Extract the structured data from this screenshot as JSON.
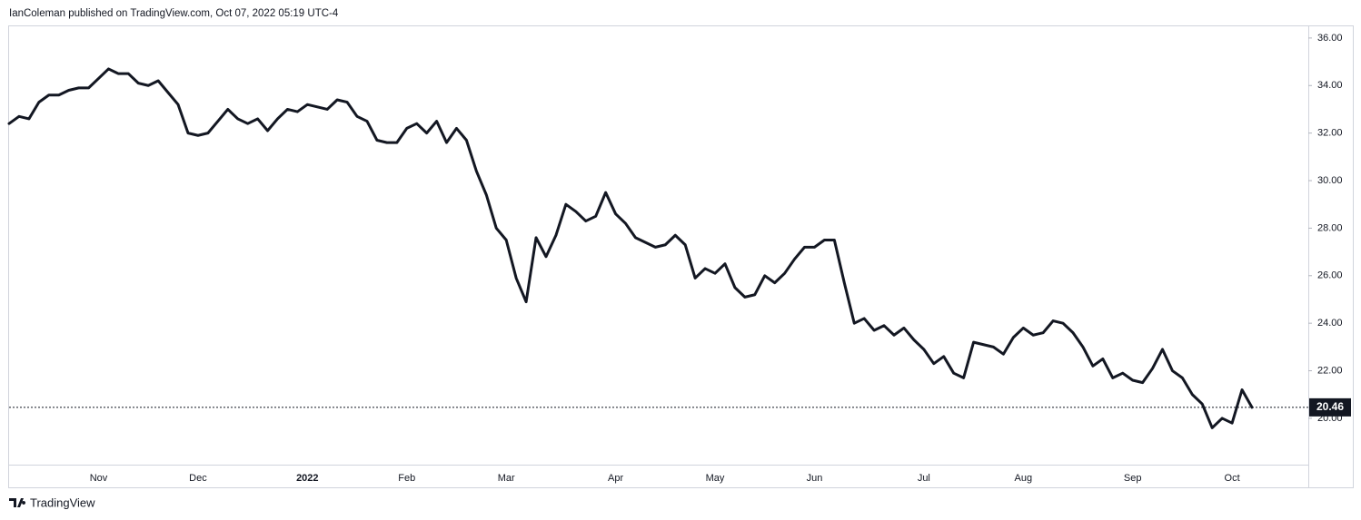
{
  "chart_data": {
    "type": "line",
    "title": "IanColeman published on TradingView.com, Oct 07, 2022 05:19 UTC-4",
    "source": "TradingView",
    "color": "#131722",
    "categories": [
      null,
      null,
      null,
      null,
      null,
      null,
      null,
      null,
      null,
      "Nov",
      null,
      null,
      null,
      null,
      null,
      null,
      null,
      null,
      null,
      "Dec",
      null,
      null,
      null,
      null,
      null,
      null,
      null,
      null,
      null,
      null,
      "2022",
      null,
      null,
      null,
      null,
      null,
      null,
      null,
      null,
      null,
      "Feb",
      null,
      null,
      null,
      null,
      null,
      null,
      null,
      null,
      null,
      "Mar",
      null,
      null,
      null,
      null,
      null,
      null,
      null,
      null,
      null,
      null,
      "Apr",
      null,
      null,
      null,
      null,
      null,
      null,
      null,
      null,
      null,
      "May",
      null,
      null,
      null,
      null,
      null,
      null,
      null,
      null,
      null,
      "Jun",
      null,
      null,
      null,
      null,
      null,
      null,
      null,
      null,
      null,
      null,
      "Jul",
      null,
      null,
      null,
      null,
      null,
      null,
      null,
      null,
      null,
      "Aug",
      null,
      null,
      null,
      null,
      null,
      null,
      null,
      null,
      null,
      null,
      "Sep",
      null,
      null,
      null,
      null,
      null,
      null,
      null,
      null,
      null,
      "Oct",
      null,
      null
    ],
    "values": [
      32.4,
      32.7,
      32.6,
      33.3,
      33.6,
      33.6,
      33.8,
      33.9,
      33.9,
      34.3,
      34.7,
      34.5,
      34.5,
      34.1,
      34.0,
      34.2,
      33.7,
      33.2,
      32.0,
      31.9,
      32.0,
      32.5,
      33.0,
      32.6,
      32.4,
      32.6,
      32.1,
      32.6,
      33.0,
      32.9,
      33.2,
      33.1,
      33.0,
      33.4,
      33.3,
      32.7,
      32.5,
      31.7,
      31.6,
      31.6,
      32.2,
      32.4,
      32.0,
      32.5,
      31.6,
      32.2,
      31.7,
      30.4,
      29.4,
      28.0,
      27.5,
      25.9,
      24.9,
      27.6,
      26.8,
      27.7,
      29.0,
      28.7,
      28.3,
      28.5,
      29.5,
      28.6,
      28.2,
      27.6,
      27.4,
      27.2,
      27.3,
      27.7,
      27.3,
      25.9,
      26.3,
      26.1,
      26.5,
      25.5,
      25.1,
      25.2,
      26.0,
      25.7,
      26.1,
      26.7,
      27.2,
      27.2,
      27.5,
      27.5,
      25.7,
      24.0,
      24.2,
      23.7,
      23.9,
      23.5,
      23.8,
      23.3,
      22.9,
      22.3,
      22.6,
      21.9,
      21.7,
      23.2,
      23.1,
      23.0,
      22.7,
      23.4,
      23.8,
      23.5,
      23.6,
      24.1,
      24.0,
      23.6,
      23.0,
      22.2,
      22.5,
      21.7,
      21.9,
      21.6,
      21.5,
      22.1,
      22.9,
      22.0,
      21.7,
      21.0,
      20.6,
      19.6,
      20.0,
      19.8,
      21.2,
      20.46
    ],
    "ylim": [
      18.05,
      36.53
    ],
    "yticks": [
      {
        "value": 20,
        "label": "20.00"
      },
      {
        "value": 22,
        "label": "22.00"
      },
      {
        "value": 24,
        "label": "24.00"
      },
      {
        "value": 26,
        "label": "26.00"
      },
      {
        "value": 28,
        "label": "28.00"
      },
      {
        "value": 30,
        "label": "30.00"
      },
      {
        "value": 32,
        "label": "32.00"
      },
      {
        "value": 34,
        "label": "34.00"
      },
      {
        "value": 36,
        "label": "36.00"
      }
    ],
    "grid": false
  }
}
